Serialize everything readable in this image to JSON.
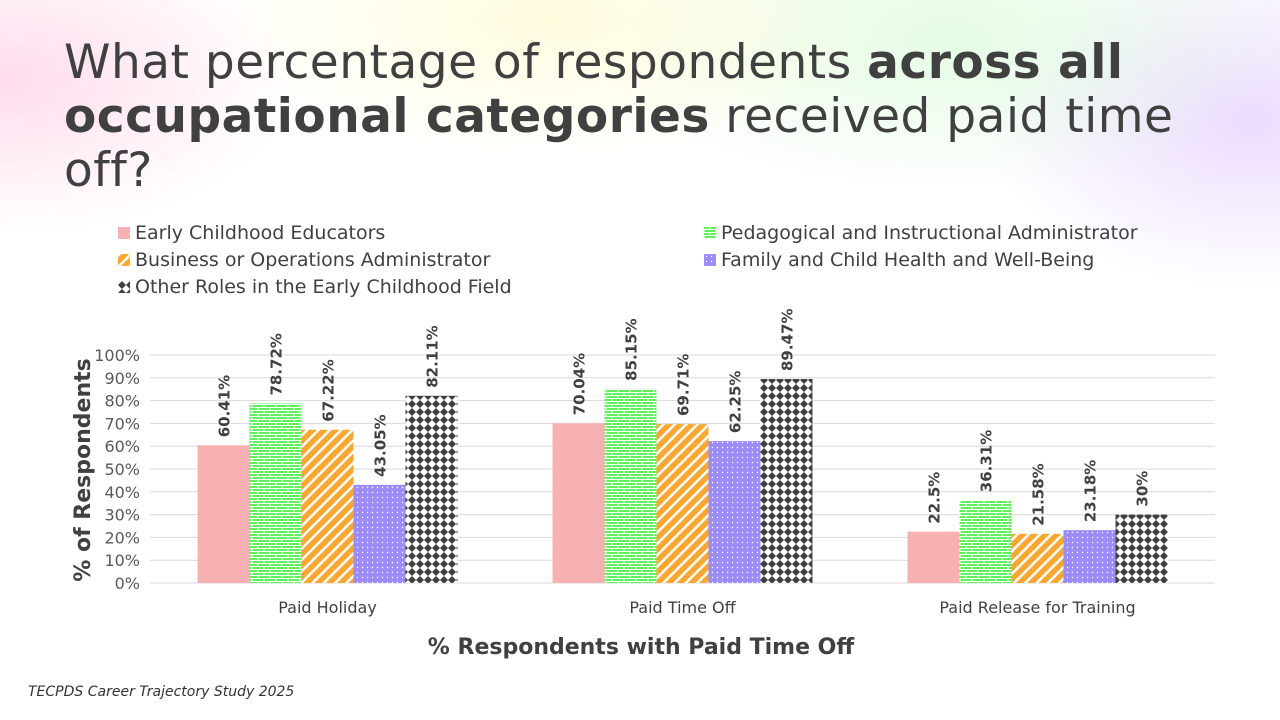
{
  "title": {
    "pre": "What percentage of respondents ",
    "bold": "across all occupational categories",
    "post": " received paid time off?"
  },
  "source": "TECPDS Career Trajectory Study 2025",
  "chart_data": {
    "type": "bar",
    "categories": [
      "Paid Holiday",
      "Paid Time Off",
      "Paid Release for Training"
    ],
    "xlabel": "% Respondents with Paid Time Off",
    "ylabel": "% of Respondents",
    "ylim": [
      0,
      100
    ],
    "yticks": [
      "0%",
      "10%",
      "20%",
      "30%",
      "40%",
      "50%",
      "60%",
      "70%",
      "80%",
      "90%",
      "100%"
    ],
    "grid": true,
    "legend_position": "top",
    "series": [
      {
        "name": "Early Childhood Educators",
        "values": [
          60.41,
          70.04,
          22.5
        ],
        "labels": [
          "60.41%",
          "70.04%",
          "22.5%"
        ],
        "color": "#f8b0b2",
        "pattern": "solid"
      },
      {
        "name": "Pedagogical and Instructional Administrator",
        "values": [
          78.72,
          85.15,
          36.31
        ],
        "labels": [
          "78.72%",
          "85.15%",
          "36.31%"
        ],
        "color": "#5ef05a",
        "pattern": "brick"
      },
      {
        "name": "Business or Operations Administrator",
        "values": [
          67.22,
          69.71,
          21.58
        ],
        "labels": [
          "67.22%",
          "69.71%",
          "21.58%"
        ],
        "color": "#f8a832",
        "pattern": "diagonal"
      },
      {
        "name": "Family and Child Health and Well-Being",
        "values": [
          43.05,
          62.25,
          23.18
        ],
        "labels": [
          "43.05%",
          "62.25%",
          "23.18%"
        ],
        "color": "#9b8cf8",
        "pattern": "dots"
      },
      {
        "name": "Other Roles in the Early Childhood Field",
        "values": [
          82.11,
          89.47,
          30
        ],
        "labels": [
          "82.11%",
          "89.47%",
          "30%"
        ],
        "color": "#404040",
        "pattern": "diamond"
      }
    ]
  }
}
